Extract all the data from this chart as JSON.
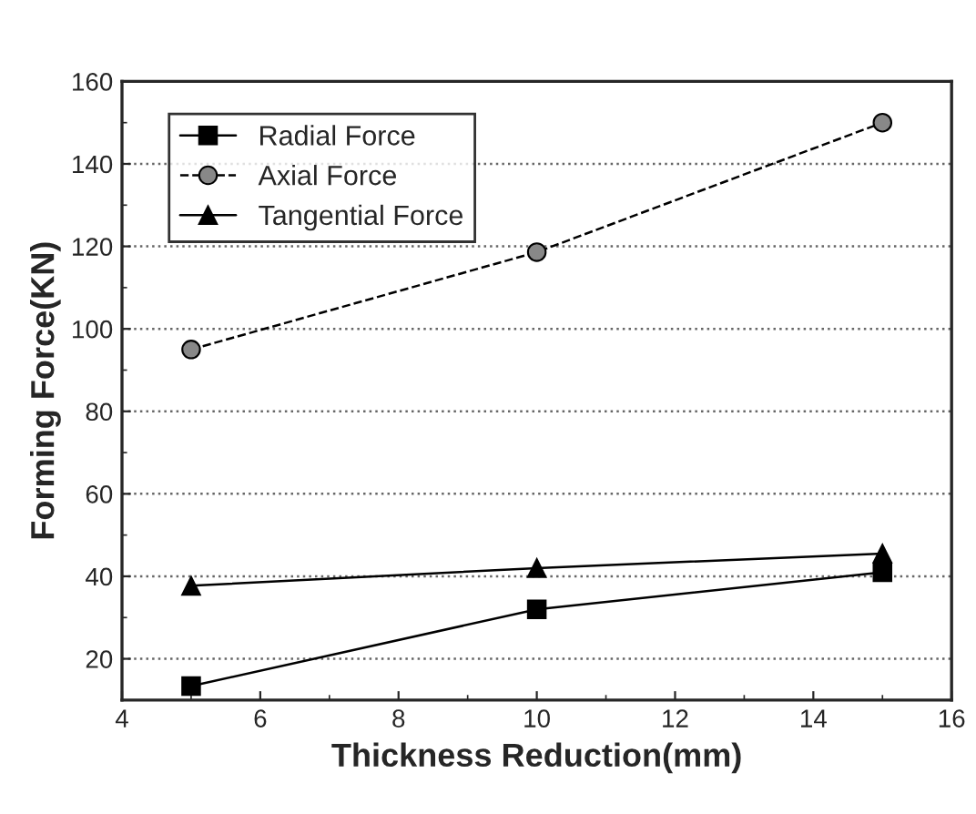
{
  "chart_data": {
    "type": "line",
    "xlabel": "Thickness Reduction(mm)",
    "ylabel": "Forming Force(KN)",
    "x": [
      5,
      10,
      15
    ],
    "series": [
      {
        "name": "Radial Force",
        "color": "#000000",
        "values": [
          13.4,
          32,
          41
        ],
        "marker": "square",
        "line_style": "solid"
      },
      {
        "name": "Axial Force",
        "color": "#000000",
        "values": [
          95,
          118.6,
          150
        ],
        "marker": "circle",
        "line_style": "dashed"
      },
      {
        "name": "Tangential Force",
        "color": "#000000",
        "values": [
          37.7,
          42,
          45.5
        ],
        "marker": "triangle",
        "line_style": "solid"
      }
    ],
    "xlim": [
      4,
      16
    ],
    "xticks": [
      4,
      6,
      8,
      10,
      12,
      14,
      16
    ],
    "ylim": [
      10,
      160
    ],
    "yticks": [
      20,
      40,
      60,
      80,
      100,
      120,
      140,
      160
    ],
    "grid": "y",
    "legend": "top left"
  }
}
